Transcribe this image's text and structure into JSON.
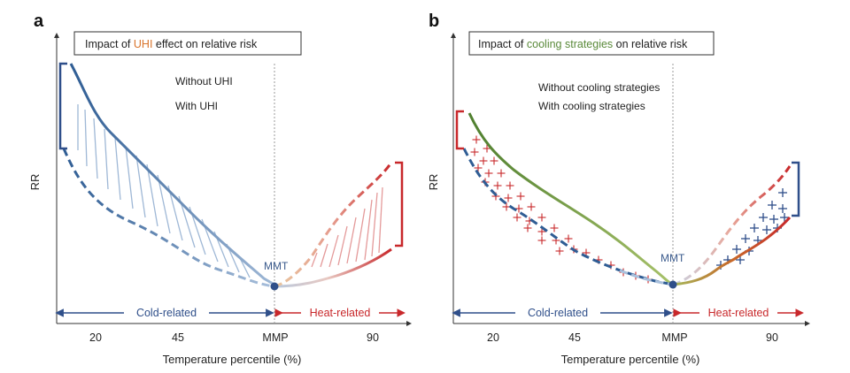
{
  "panel_a": {
    "letter": "a",
    "title_prefix": "Impact of ",
    "title_highlight": "UHI",
    "title_suffix": " effect on relative risk",
    "legend_solid": "Without UHI",
    "legend_dashed": "With UHI",
    "y_label": "RR",
    "x_label": "Temperature percentile (%)",
    "ticks": [
      "20",
      "45",
      "MMP",
      "90"
    ],
    "cold_label": "Cold-related",
    "heat_label": "Heat-related",
    "mmt_label": "MMT"
  },
  "panel_b": {
    "letter": "b",
    "title_prefix": "Impact of ",
    "title_highlight": "cooling strategies",
    "title_suffix": " on relative risk",
    "legend_dashed": "Without cooling strategies",
    "legend_solid": "With cooling strategies",
    "y_label": "RR",
    "x_label": "Temperature percentile (%)",
    "ticks": [
      "20",
      "45",
      "MMP",
      "90"
    ],
    "cold_label": "Cold-related",
    "heat_label": "Heat-related",
    "mmt_label": "MMT"
  },
  "colors": {
    "cold_blue": "#2f5d94",
    "heat_red": "#c8282b",
    "uhi_orange": "#d9742c",
    "cooling_green": "#5a8a3a",
    "mmt_dot": "#2f4f8a"
  }
}
